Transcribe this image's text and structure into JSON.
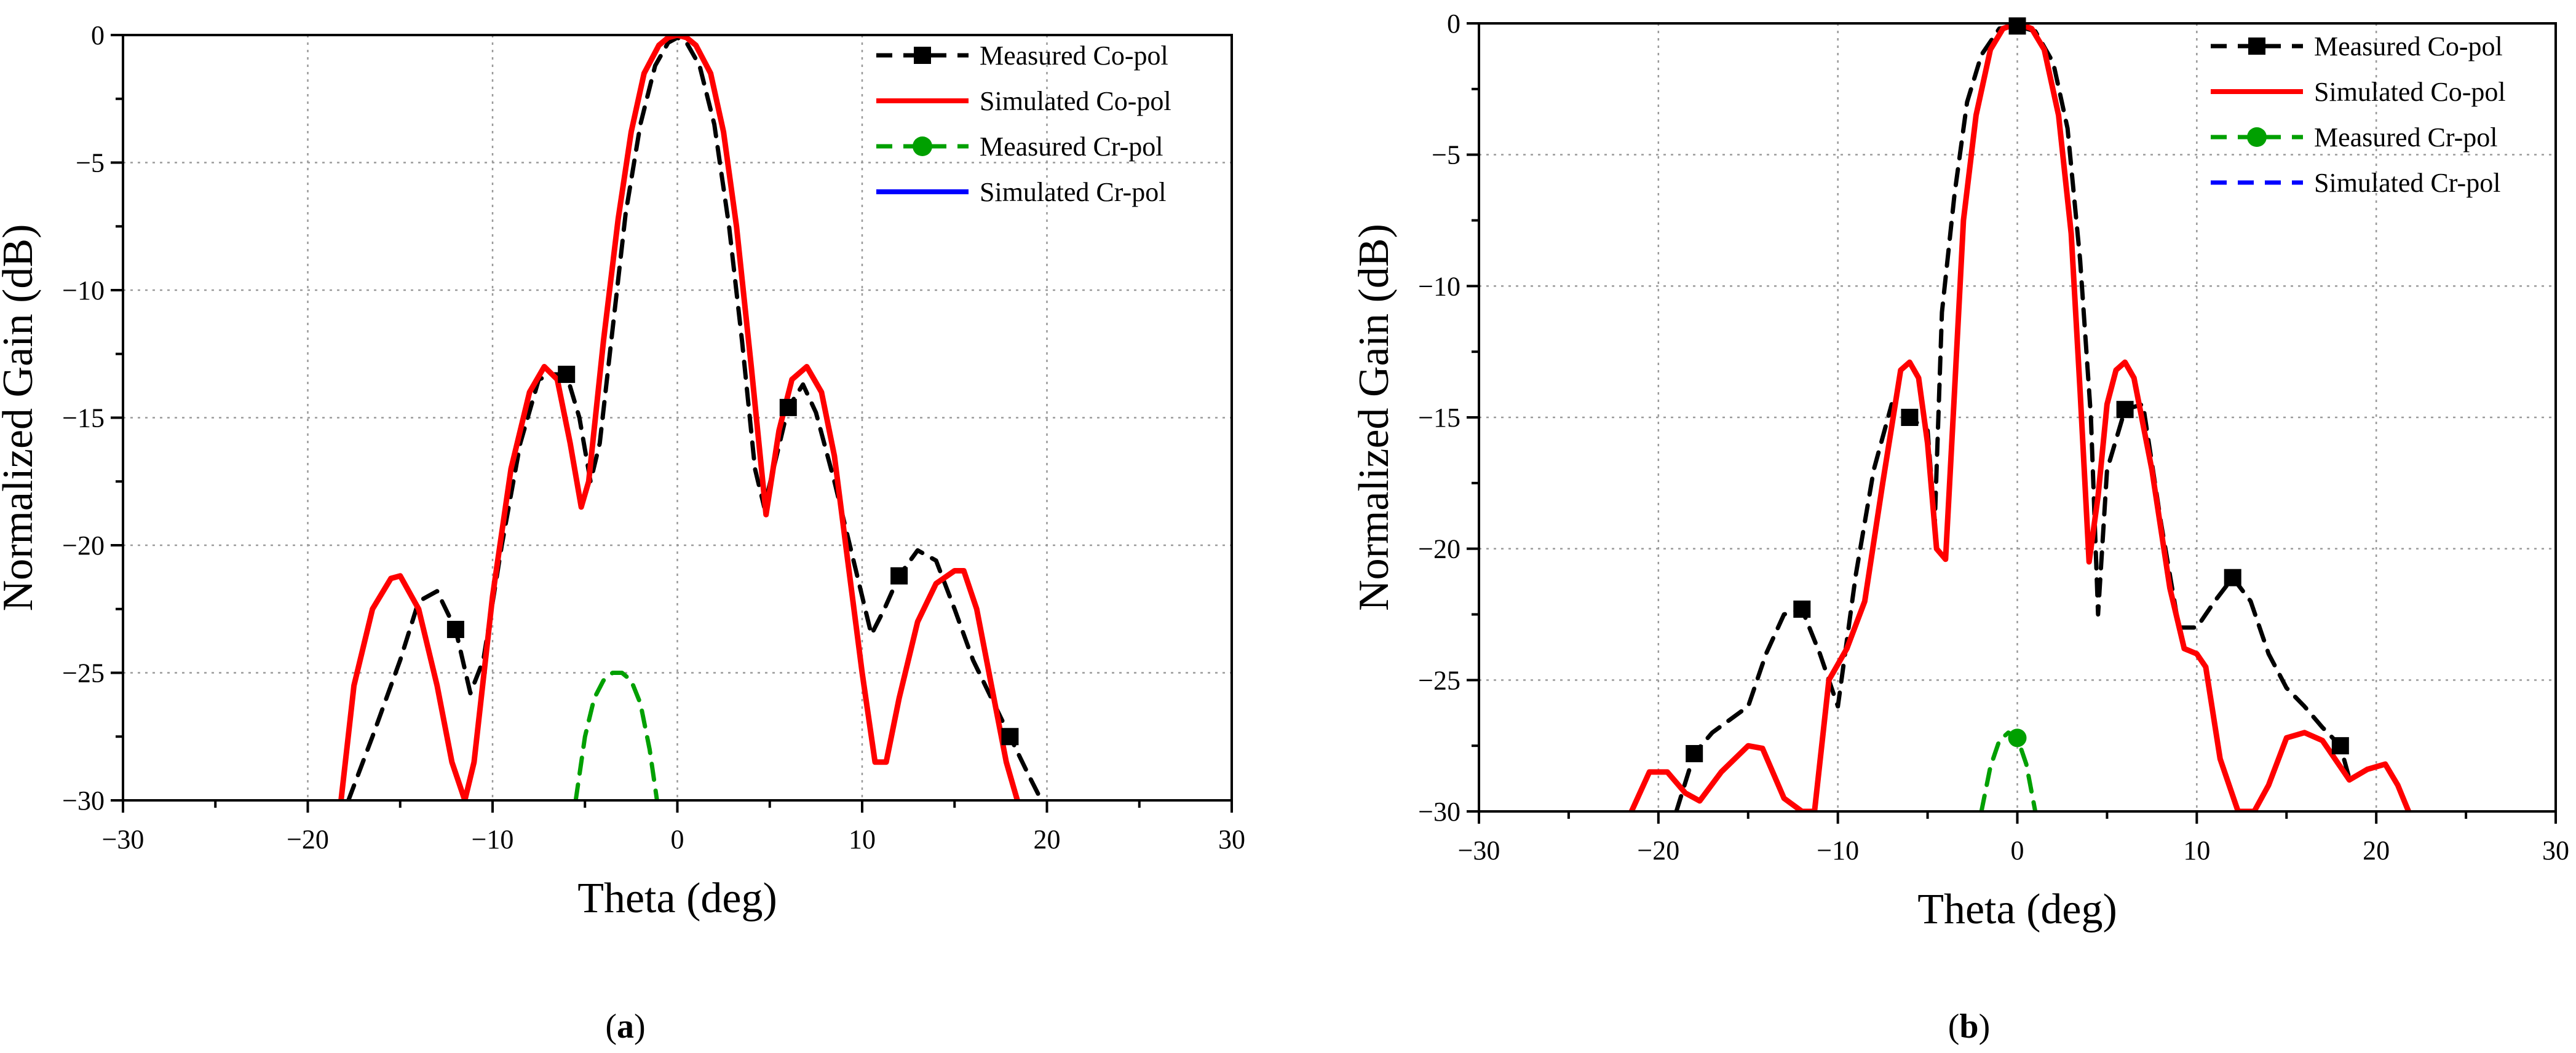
{
  "chart_data": [
    {
      "type": "line",
      "panel_label": "(a)",
      "title": "",
      "xlabel": "Theta (deg)",
      "ylabel": "Normalized Gain (dB)",
      "xlim": [
        -30,
        30
      ],
      "ylim": [
        -30,
        0
      ],
      "xticks": [
        -30,
        -20,
        -10,
        0,
        10,
        20,
        30
      ],
      "yticks": [
        0,
        -5,
        -10,
        -15,
        -20,
        -25,
        -30
      ],
      "xtick_labels": [
        "−30",
        "−20",
        "−10",
        "0",
        "10",
        "20",
        "30"
      ],
      "ytick_labels": [
        "0",
        "−5",
        "−10",
        "−15",
        "−20",
        "−25",
        "−30"
      ],
      "grid": true,
      "legend_position": "top-right",
      "series": [
        {
          "name": "Measured Co-pol",
          "color": "#000000",
          "style": "dashed",
          "marker": "square",
          "x": [
            -17.8,
            -16.5,
            -15,
            -14,
            -13,
            -12,
            -11.2,
            -10.5,
            -9.5,
            -8.5,
            -7.5,
            -6.8,
            -6,
            -5.3,
            -4.7,
            -4.2,
            -3.5,
            -2.8,
            -2,
            -1.2,
            -0.5,
            0,
            0.5,
            1.2,
            2,
            2.8,
            3.5,
            4.2,
            4.7,
            5.2,
            6,
            6.8,
            7.5,
            8.5,
            9.5,
            10.5,
            11.2,
            12,
            13,
            14,
            15,
            16,
            17,
            18,
            19,
            19.7
          ],
          "y": [
            -30,
            -27.5,
            -24.5,
            -22.2,
            -21.8,
            -23.3,
            -25.8,
            -24.5,
            -20,
            -16,
            -13.5,
            -13.3,
            -13.3,
            -15,
            -17.5,
            -16,
            -11.5,
            -7,
            -3.5,
            -1.2,
            -0.3,
            -0.1,
            -0.3,
            -1.2,
            -3.5,
            -7.5,
            -12,
            -17,
            -18.5,
            -17,
            -14.6,
            -13.7,
            -14.8,
            -17.5,
            -20.5,
            -23.5,
            -22.5,
            -21.2,
            -20.2,
            -20.6,
            -22.5,
            -24.5,
            -26,
            -27.5,
            -29,
            -30
          ],
          "marker_x": [
            -12,
            -6,
            6,
            12,
            18
          ],
          "marker_y": [
            -23.3,
            -13.3,
            -14.6,
            -21.2,
            -27.5
          ]
        },
        {
          "name": "Simulated Co-pol",
          "color": "#ff0000",
          "style": "solid",
          "marker": "none",
          "x": [
            -18.2,
            -17.5,
            -16.5,
            -15.5,
            -15,
            -14,
            -13,
            -12.2,
            -11.5,
            -11,
            -10,
            -9,
            -8,
            -7.2,
            -6.5,
            -5.8,
            -5.2,
            -4.8,
            -4,
            -3.2,
            -2.5,
            -1.8,
            -1,
            -0.5,
            0,
            0.5,
            1,
            1.8,
            2.5,
            3.2,
            4,
            4.8,
            5.5,
            6.2,
            7,
            7.8,
            8.5,
            9.2,
            10,
            10.7,
            11.3,
            12,
            13,
            14,
            15,
            15.5,
            16.2,
            17,
            17.8,
            18.4
          ],
          "y": [
            -30,
            -25.5,
            -22.5,
            -21.3,
            -21.2,
            -22.5,
            -25.5,
            -28.5,
            -30,
            -28.5,
            -22,
            -17,
            -14,
            -13,
            -13.5,
            -16,
            -18.5,
            -17.5,
            -12,
            -7.2,
            -3.8,
            -1.5,
            -0.4,
            -0.1,
            0,
            -0.1,
            -0.4,
            -1.5,
            -3.8,
            -7.5,
            -13,
            -18.8,
            -15.5,
            -13.5,
            -13,
            -14,
            -16.5,
            -20.5,
            -25,
            -28.5,
            -28.5,
            -26,
            -23,
            -21.5,
            -21,
            -21,
            -22.5,
            -25.5,
            -28.5,
            -30
          ]
        },
        {
          "name": "Measured Cr-pol",
          "color": "#00a000",
          "style": "dashed",
          "marker": "circle",
          "x": [
            -5.5,
            -5,
            -4.5,
            -4,
            -3.5,
            -3,
            -2.5,
            -2,
            -1.5,
            -1.1
          ],
          "y": [
            -30,
            -27.5,
            -26,
            -25.3,
            -25,
            -25,
            -25.3,
            -26.2,
            -28,
            -30
          ],
          "marker_x": [],
          "marker_y": []
        },
        {
          "name": "Simulated Cr-pol",
          "color": "#0000ff",
          "style": "solid",
          "marker": "none",
          "x": [],
          "y": []
        }
      ]
    },
    {
      "type": "line",
      "panel_label": "(b)",
      "title": "",
      "xlabel": "Theta (deg)",
      "ylabel": "Normalized Gain (dB)",
      "xlim": [
        -30,
        30
      ],
      "ylim": [
        -30,
        0
      ],
      "xticks": [
        -30,
        -20,
        -10,
        0,
        10,
        20,
        30
      ],
      "yticks": [
        0,
        -5,
        -10,
        -15,
        -20,
        -25,
        -30
      ],
      "xtick_labels": [
        "−30",
        "−20",
        "−10",
        "0",
        "10",
        "20",
        "30"
      ],
      "ytick_labels": [
        "0",
        "−5",
        "−10",
        "−15",
        "−20",
        "−25",
        "−30"
      ],
      "grid": true,
      "legend_position": "top-right",
      "series": [
        {
          "name": "Measured Co-pol",
          "color": "#000000",
          "style": "dashed",
          "marker": "square",
          "x": [
            -19,
            -18,
            -17,
            -15,
            -14,
            -13,
            -12,
            -11,
            -10,
            -9,
            -8,
            -7,
            -6,
            -5,
            -4.6,
            -4.2,
            -3.5,
            -2.8,
            -2,
            -1,
            0,
            1,
            2,
            2.8,
            3.5,
            4.1,
            4.5,
            5,
            6,
            7,
            8,
            9,
            10,
            11,
            12,
            13,
            14,
            15,
            16,
            17,
            18,
            18.6
          ],
          "y": [
            -30,
            -27.8,
            -27,
            -26,
            -24,
            -22.5,
            -22.3,
            -24,
            -26,
            -21,
            -17,
            -14.5,
            -15,
            -15.5,
            -19,
            -11,
            -6.5,
            -3,
            -1.2,
            -0.2,
            -0.1,
            -0.3,
            -1.5,
            -4,
            -9,
            -15,
            -22.5,
            -17,
            -14.7,
            -14.5,
            -19,
            -23,
            -23,
            -22,
            -21.1,
            -22,
            -24,
            -25.3,
            -26,
            -26.8,
            -27.5,
            -29
          ],
          "marker_x": [
            -18,
            -12,
            -6,
            0,
            6,
            12,
            18
          ],
          "marker_y": [
            -27.8,
            -22.3,
            -15,
            -0.1,
            -14.7,
            -21.1,
            -27.5
          ]
        },
        {
          "name": "Simulated Co-pol",
          "color": "#ff0000",
          "style": "solid",
          "marker": "none",
          "x": [
            -21.5,
            -20.5,
            -19.5,
            -18.5,
            -17.7,
            -16.5,
            -15,
            -14.2,
            -13,
            -12,
            -11.3,
            -10.5,
            -9.5,
            -8.5,
            -7.5,
            -6.5,
            -6,
            -5.5,
            -5,
            -4.5,
            -4,
            -3.5,
            -3,
            -2.3,
            -1.5,
            -0.8,
            0,
            0.8,
            1.5,
            2.3,
            3,
            3.5,
            4,
            4.5,
            5,
            5.5,
            6,
            6.5,
            7.5,
            8.5,
            9.3,
            10,
            10.5,
            11.3,
            12.3,
            13.2,
            14,
            15,
            16,
            17,
            18.5,
            19.5,
            20.5,
            21.2,
            21.8
          ],
          "y": [
            -30,
            -28.5,
            -28.5,
            -29.3,
            -29.6,
            -28.5,
            -27.5,
            -27.6,
            -29.5,
            -30,
            -30,
            -25,
            -23.8,
            -22,
            -17.5,
            -13.2,
            -12.9,
            -13.5,
            -16,
            -20,
            -20.4,
            -14,
            -7.5,
            -3.5,
            -1,
            -0.2,
            0,
            -0.2,
            -1,
            -3.5,
            -8,
            -14,
            -20.5,
            -18,
            -14.5,
            -13.2,
            -12.9,
            -13.5,
            -17,
            -21.5,
            -23.8,
            -24,
            -24.5,
            -28,
            -30,
            -30,
            -29,
            -27.2,
            -27,
            -27.3,
            -28.8,
            -28.4,
            -28.2,
            -29,
            -30
          ]
        },
        {
          "name": "Measured Cr-pol",
          "color": "#00a000",
          "style": "dashed",
          "marker": "circle",
          "x": [
            -2,
            -1.5,
            -1,
            -0.5,
            0,
            0.5,
            1
          ],
          "y": [
            -30,
            -28.3,
            -27.3,
            -27,
            -27.2,
            -28.2,
            -30
          ],
          "marker_x": [
            0
          ],
          "marker_y": [
            -27.2
          ]
        },
        {
          "name": "Simulated Cr-pol",
          "color": "#0000ff",
          "style": "dashed",
          "marker": "none",
          "x": [],
          "y": []
        }
      ]
    }
  ]
}
